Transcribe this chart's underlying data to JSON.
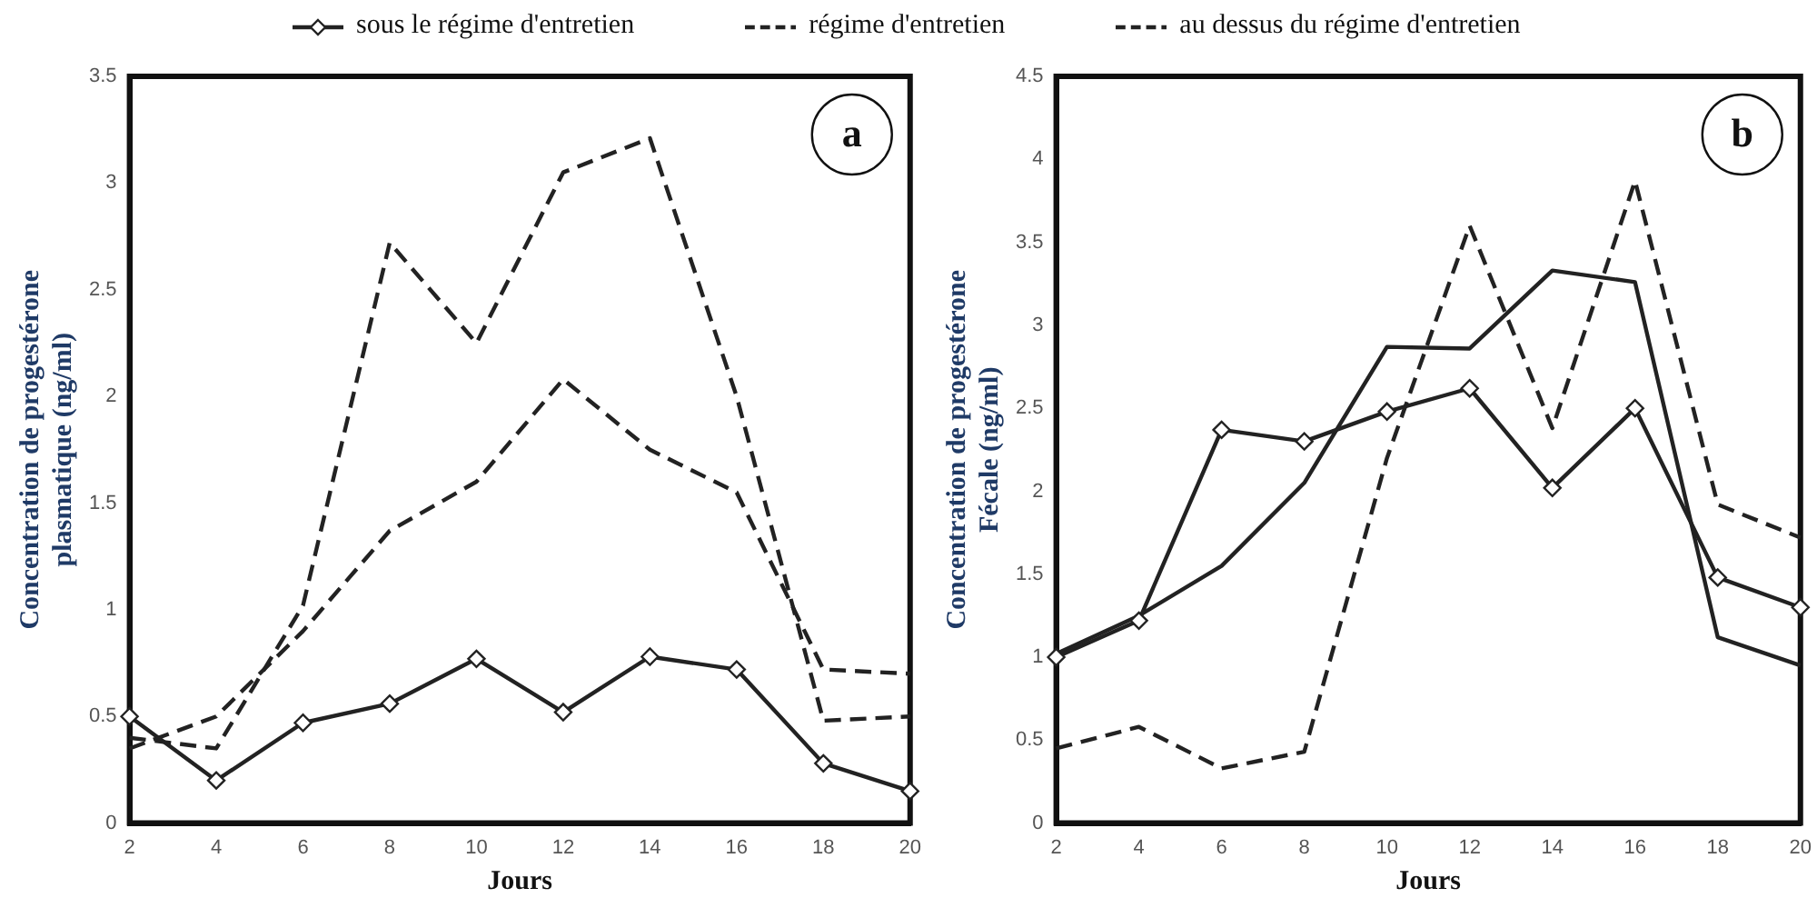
{
  "chart_data": [
    {
      "type": "line",
      "xlabel": "Jours",
      "ylabel": "Concentration de progestérone\nplasmatique (ng/ml)",
      "annotations": [
        "a"
      ],
      "x": [
        2,
        4,
        6,
        8,
        10,
        12,
        14,
        16,
        18,
        20
      ],
      "xlim": [
        2,
        20
      ],
      "xticks": [
        2,
        4,
        6,
        8,
        10,
        12,
        14,
        16,
        18,
        20
      ],
      "ylim": [
        0,
        3.5
      ],
      "yticks": [
        0,
        0.5,
        1,
        1.5,
        2,
        2.5,
        3,
        3.5
      ],
      "grid": false,
      "legend": "top",
      "series": [
        {
          "name": "sous le régime d'entretien",
          "color": "#222222",
          "marker": "diamond",
          "line_style": "solid",
          "values": [
            0.5,
            0.2,
            0.47,
            0.56,
            0.77,
            0.52,
            0.78,
            0.72,
            0.28,
            0.15
          ]
        },
        {
          "name": "régime d'entretien",
          "color": "#222222",
          "marker": "none",
          "line_style": "dashed",
          "values": [
            0.35,
            0.5,
            0.9,
            1.37,
            1.6,
            2.08,
            1.75,
            1.55,
            0.72,
            0.7
          ]
        },
        {
          "name": "au dessus du régime d'entretien",
          "color": "#222222",
          "marker": "none",
          "line_style": "dashed",
          "values": [
            0.4,
            0.35,
            1.02,
            2.72,
            2.25,
            3.05,
            3.21,
            2.0,
            0.48,
            0.5
          ]
        }
      ]
    },
    {
      "type": "line",
      "xlabel": "Jours",
      "ylabel": "Concentration de progestérone\nFécale (ng/ml)",
      "annotations": [
        "b"
      ],
      "x": [
        2,
        4,
        6,
        8,
        10,
        12,
        14,
        16,
        18,
        20
      ],
      "xlim": [
        2,
        20
      ],
      "xticks": [
        2,
        4,
        6,
        8,
        10,
        12,
        14,
        16,
        18,
        20
      ],
      "ylim": [
        0,
        4.5
      ],
      "yticks": [
        0,
        0.5,
        1,
        1.5,
        2,
        2.5,
        3,
        3.5,
        4,
        4.5
      ],
      "grid": false,
      "series": [
        {
          "color": "#222222",
          "marker": "diamond",
          "line_style": "solid",
          "values": [
            1.0,
            1.22,
            2.37,
            2.3,
            2.48,
            2.62,
            2.02,
            2.5,
            1.48,
            1.3
          ]
        },
        {
          "color": "#222222",
          "marker": "none",
          "line_style": "dashed",
          "values": [
            0.45,
            0.58,
            0.33,
            0.43,
            2.2,
            3.6,
            2.38,
            3.87,
            1.92,
            1.72
          ]
        },
        {
          "color": "#222222",
          "marker": "none",
          "line_style": "solid",
          "values": [
            1.02,
            1.25,
            1.55,
            2.05,
            2.87,
            2.86,
            3.33,
            3.26,
            1.12,
            0.95
          ]
        }
      ]
    }
  ]
}
